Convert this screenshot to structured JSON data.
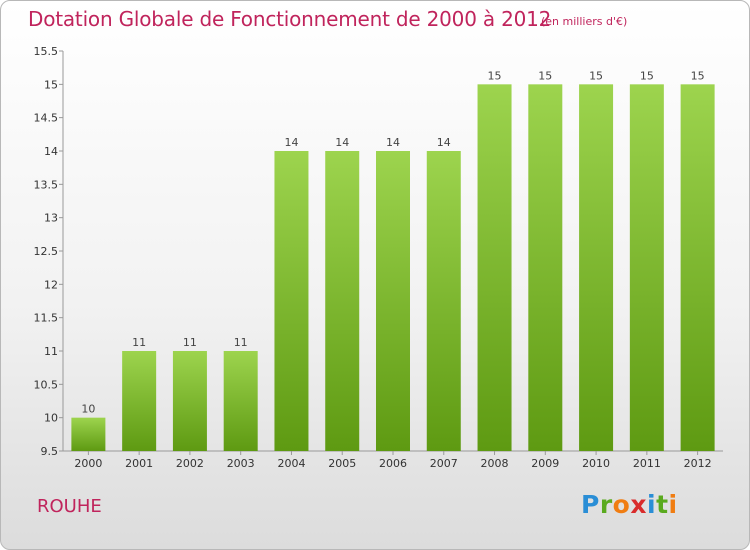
{
  "header": {
    "title": "Dotation Globale de Fonctionnement de 2000 à 2012",
    "subtitle": "(en milliers d'€)"
  },
  "footer": {
    "location": "ROUHE",
    "logo": {
      "letters": [
        "P",
        "r",
        "o",
        "x",
        "i",
        "t",
        "i"
      ],
      "colors": [
        "#2a8ed6",
        "#5aaa1e",
        "#f07d12",
        "#d92b2b",
        "#2a8ed6",
        "#5aaa1e",
        "#f07d12"
      ]
    }
  },
  "chart_data": {
    "type": "bar",
    "title": "Dotation Globale de Fonctionnement de 2000 à 2012",
    "subtitle": "(en milliers d'€)",
    "categories": [
      "2000",
      "2001",
      "2002",
      "2003",
      "2004",
      "2005",
      "2006",
      "2007",
      "2008",
      "2009",
      "2010",
      "2011",
      "2012"
    ],
    "values": [
      10,
      11,
      11,
      11,
      14,
      14,
      14,
      14,
      15,
      15,
      15,
      15,
      15
    ],
    "data_labels": [
      "10",
      "11",
      "11",
      "11",
      "14",
      "14",
      "14",
      "14",
      "15",
      "15",
      "15",
      "15",
      "15"
    ],
    "yticks": [
      "9.5",
      "10",
      "10.5",
      "11",
      "11.5",
      "12",
      "12.5",
      "13",
      "13.5",
      "14",
      "14.5",
      "15",
      "15.5"
    ],
    "ylim": [
      9.5,
      15.5
    ],
    "xlabel": "",
    "ylabel": "",
    "grid": false,
    "legend": "none",
    "bar_color_top": "#9dd44e",
    "bar_color_bottom": "#5e9a12"
  }
}
